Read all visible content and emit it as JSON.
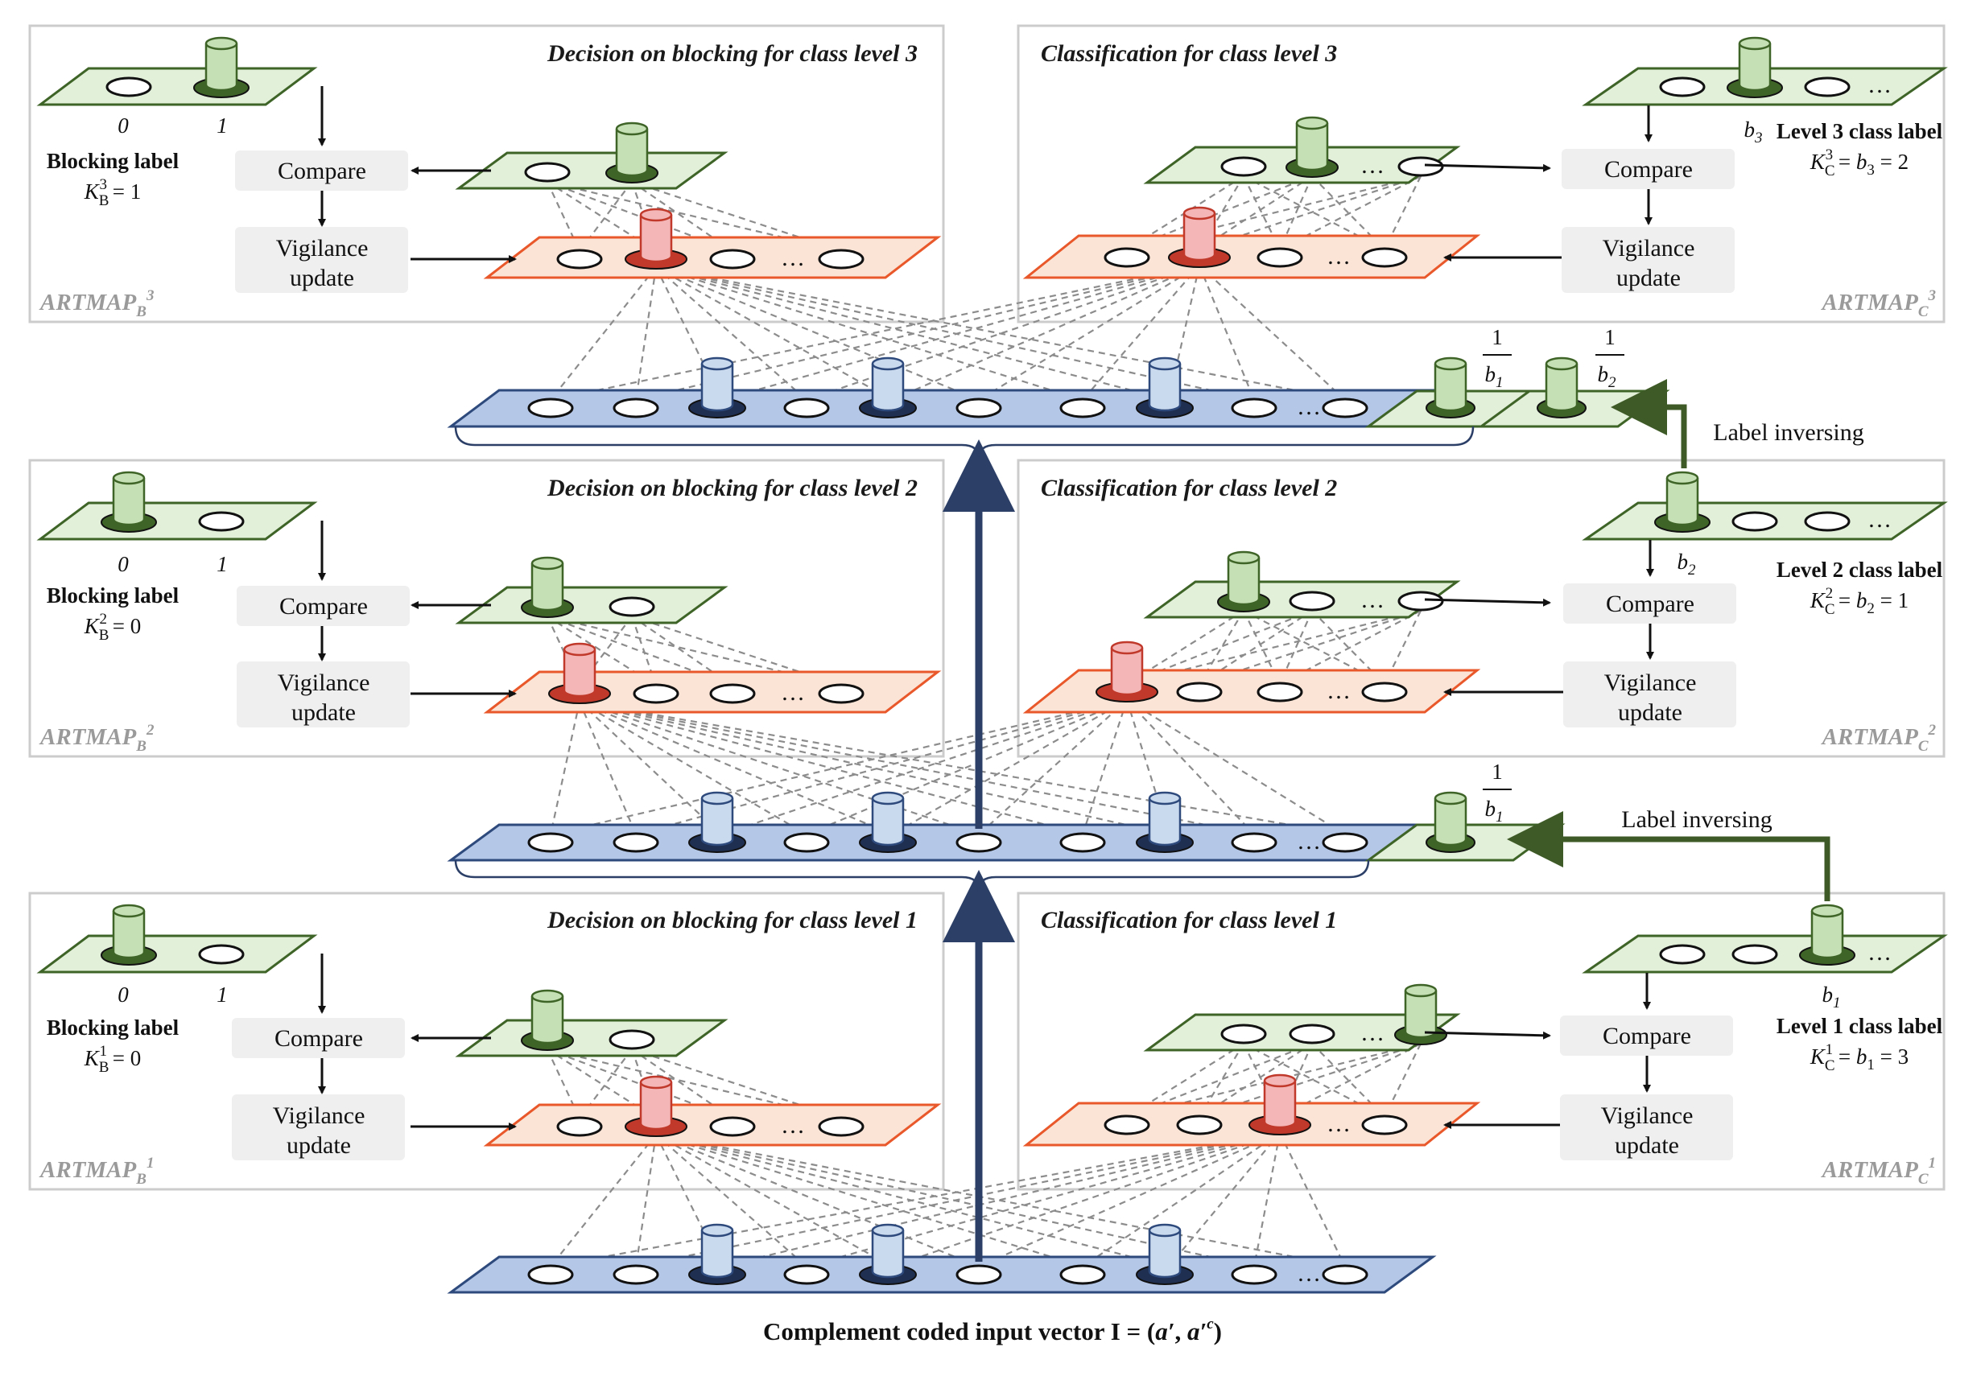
{
  "caption": {
    "prefix": "Complement coded input vector  I = (",
    "a1": "a′",
    "comma": ", ",
    "a2": "a′",
    "a2sup": "c",
    "suffix": ")"
  },
  "modules": [
    {
      "level": 3,
      "blocking": {
        "header": "Decision on blocking for class level 3",
        "label_title": "Blocking label",
        "k_base": "K",
        "k_sub": "B",
        "k_sup": "3",
        "k_value": " = 1",
        "opt0": "0",
        "opt1": "1",
        "compare": "Compare",
        "vig1": "Vigilance",
        "vig2": "update",
        "artmap": "ARTMAP",
        "artmap_sub": "B",
        "artmap_sup": "3"
      },
      "classification": {
        "header": "Classification for class level 3",
        "label_title": "Level 3 class label",
        "k_base": "K",
        "k_sub": "C",
        "k_sup": "3",
        "k_rest": " = ",
        "b_sym": "b",
        "b_sub": "3",
        "k_value": " = 2",
        "compare": "Compare",
        "vig1": "Vigilance",
        "vig2": "update",
        "artmap": "ARTMAP",
        "artmap_sub": "C",
        "artmap_sup": "3"
      }
    },
    {
      "level": 2,
      "blocking": {
        "header": "Decision on blocking for class level 2",
        "label_title": "Blocking label",
        "k_base": "K",
        "k_sub": "B",
        "k_sup": "2",
        "k_value": " = 0",
        "opt0": "0",
        "opt1": "1",
        "compare": "Compare",
        "vig1": "Vigilance",
        "vig2": "update",
        "artmap": "ARTMAP",
        "artmap_sub": "B",
        "artmap_sup": "2"
      },
      "classification": {
        "header": "Classification for class level 2",
        "label_title": "Level 2 class label",
        "k_base": "K",
        "k_sub": "C",
        "k_sup": "2",
        "k_rest": " = ",
        "b_sym": "b",
        "b_sub": "2",
        "k_value": " = 1",
        "compare": "Compare",
        "vig1": "Vigilance",
        "vig2": "update",
        "artmap": "ARTMAP",
        "artmap_sub": "C",
        "artmap_sup": "2"
      }
    },
    {
      "level": 1,
      "blocking": {
        "header": "Decision on blocking for class level 1",
        "label_title": "Blocking label",
        "k_base": "K",
        "k_sub": "B",
        "k_sup": "1",
        "k_value": " = 0",
        "opt0": "0",
        "opt1": "1",
        "compare": "Compare",
        "vig1": "Vigilance",
        "vig2": "update",
        "artmap": "ARTMAP",
        "artmap_sub": "B",
        "artmap_sup": "1"
      },
      "classification": {
        "header": "Classification for class level 1",
        "label_title": "Level 1 class label",
        "k_base": "K",
        "k_sub": "C",
        "k_sup": "1",
        "k_rest": " = ",
        "b_sym": "b",
        "b_sub": "1",
        "k_value": " = 3",
        "compare": "Compare",
        "vig1": "Vigilance",
        "vig2": "update",
        "artmap": "ARTMAP",
        "artmap_sub": "C",
        "artmap_sup": "1"
      }
    }
  ],
  "label_inversing": "Label inversing",
  "frac": {
    "one": "1",
    "b": "b",
    "s1": "1",
    "s2": "2"
  },
  "ellipsis": "…",
  "colors": {
    "input_plane": "#b4c7e7",
    "category_plane": "#fbe4d5",
    "label_plane": "#e2efd9",
    "main_arrow": "#2b3f67",
    "inverse_arrow": "#3e5a26"
  },
  "icons": [
    "cylinder-node-icon",
    "oval-node-icon",
    "arrow-icon",
    "brace-icon"
  ]
}
